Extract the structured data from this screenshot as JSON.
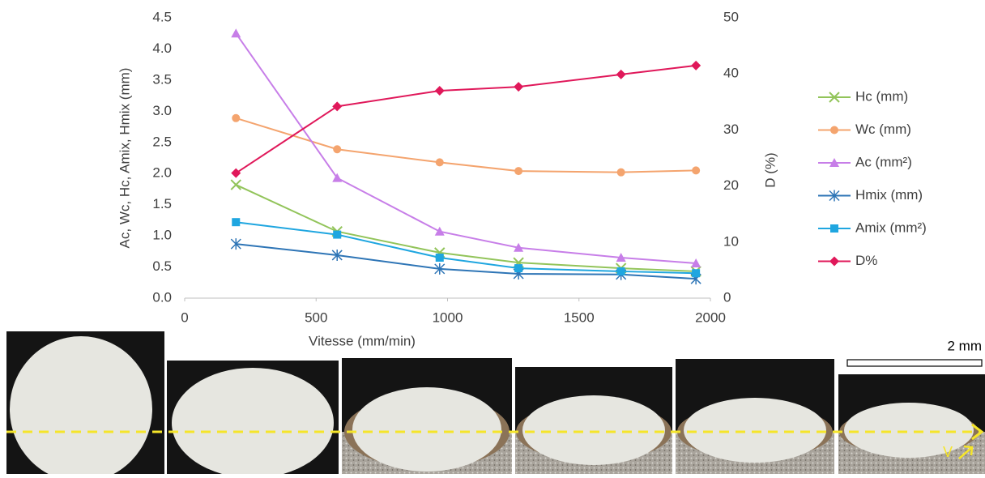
{
  "chart_data": {
    "type": "line",
    "x_label": "Vitesse (mm/min)",
    "y_label": "Ac, Wc, Hc, Amix, Hmix (mm)",
    "y2_label": "D (%)",
    "x": [
      195,
      580,
      970,
      1270,
      1660,
      1945
    ],
    "xlim": [
      0,
      2000
    ],
    "xticks": [
      0,
      500,
      1000,
      1500,
      2000
    ],
    "ylim": [
      0,
      4.5
    ],
    "yticks": [
      {
        "value": 0,
        "label": "0.0"
      },
      0.5,
      {
        "value": 1,
        "label": "1.0"
      },
      1.5,
      {
        "value": 2,
        "label": "2.0"
      },
      2.5,
      {
        "value": 3,
        "label": "3.0"
      },
      3.5,
      {
        "value": 4,
        "label": "4.0"
      },
      4.5
    ],
    "y2lim": [
      0,
      50
    ],
    "y2ticks": [
      0,
      10,
      20,
      30,
      40,
      50
    ],
    "grid": false,
    "legend": "right",
    "series": [
      {
        "name": "Hc (mm)",
        "color": "#92c45a",
        "marker": "x",
        "values": [
          1.82,
          1.07,
          0.73,
          0.57,
          0.48,
          0.43
        ]
      },
      {
        "name": "Wc (mm)",
        "color": "#f4a46e",
        "marker": "circle",
        "values": [
          2.89,
          2.39,
          2.18,
          2.04,
          2.02,
          2.05
        ]
      },
      {
        "name": "Ac (mm²)",
        "color": "#c77ee8",
        "marker": "triangle",
        "values": [
          4.25,
          1.93,
          1.07,
          0.81,
          0.65,
          0.56
        ]
      },
      {
        "name": "Hmix (mm)",
        "color": "#2e75b6",
        "marker": "asterisk",
        "values": [
          0.87,
          0.69,
          0.47,
          0.39,
          0.38,
          0.31
        ]
      },
      {
        "name": "Amix (mm²)",
        "color": "#1fa6e0",
        "marker": "square",
        "values": [
          1.22,
          1.02,
          0.65,
          0.48,
          0.43,
          0.4
        ]
      },
      {
        "name": "D%",
        "color": "#e0185a",
        "marker": "diamond",
        "axis": "y2",
        "values": [
          22.3,
          34.2,
          37.0,
          37.7,
          39.9,
          41.5
        ]
      }
    ]
  },
  "micrographs": {
    "scale_label": "2 mm",
    "direction_label": "V"
  }
}
